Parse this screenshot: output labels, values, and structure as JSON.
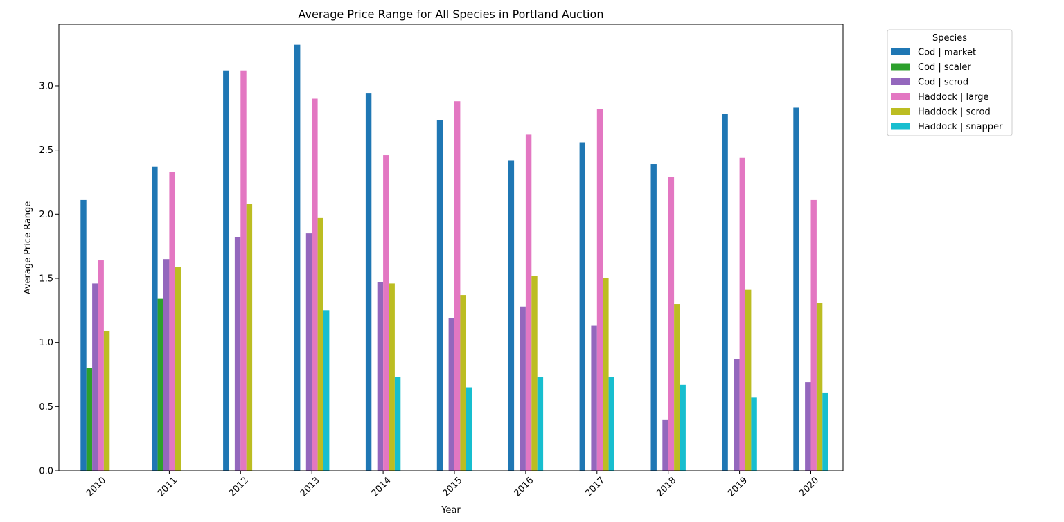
{
  "chart_data": {
    "type": "bar",
    "title": "Average Price Range for All Species in Portland Auction",
    "xlabel": "Year",
    "ylabel": "Average Price Range",
    "categories": [
      "2010",
      "2011",
      "2012",
      "2013",
      "2014",
      "2015",
      "2016",
      "2017",
      "2018",
      "2019",
      "2020"
    ],
    "yticks": [
      "0.0",
      "0.5",
      "1.0",
      "1.5",
      "2.0",
      "2.5",
      "3.0"
    ],
    "ylim": [
      0,
      3.48
    ],
    "grid": false,
    "legend": {
      "title": "Species",
      "placement": "outside-top-right"
    },
    "series": [
      {
        "name": "Cod | market",
        "color": "#1f77b4",
        "values": [
          2.11,
          2.37,
          3.12,
          3.32,
          2.94,
          2.73,
          2.42,
          2.56,
          2.39,
          2.78,
          2.83
        ]
      },
      {
        "name": "Cod | scaler",
        "color": "#2ca02c",
        "values": [
          0.8,
          1.34,
          null,
          null,
          null,
          null,
          null,
          null,
          null,
          null,
          null
        ]
      },
      {
        "name": "Cod | scrod",
        "color": "#9467bd",
        "values": [
          1.46,
          1.65,
          1.82,
          1.85,
          1.47,
          1.19,
          1.28,
          1.13,
          0.4,
          0.87,
          0.69
        ]
      },
      {
        "name": "Haddock | large",
        "color": "#e377c2",
        "values": [
          1.64,
          2.33,
          3.12,
          2.9,
          2.46,
          2.88,
          2.62,
          2.82,
          2.29,
          2.44,
          2.11
        ]
      },
      {
        "name": "Haddock | scrod",
        "color": "#bcbd22",
        "values": [
          1.09,
          1.59,
          2.08,
          1.97,
          1.46,
          1.37,
          1.52,
          1.5,
          1.3,
          1.41,
          1.31
        ]
      },
      {
        "name": "Haddock | snapper",
        "color": "#17becf",
        "values": [
          null,
          null,
          null,
          1.25,
          0.73,
          0.65,
          0.73,
          0.73,
          0.67,
          0.57,
          0.61
        ]
      }
    ]
  }
}
